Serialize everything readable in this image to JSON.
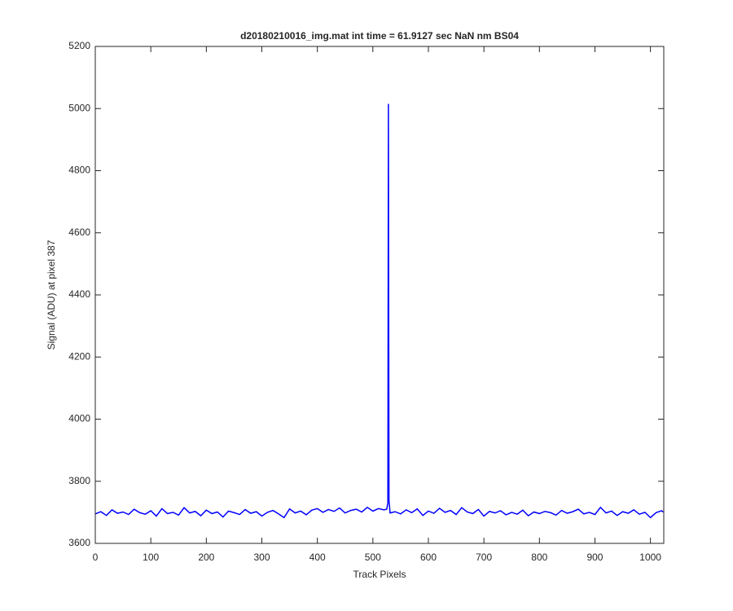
{
  "chart_data": {
    "type": "line",
    "title": "d20180210016_img.mat int time = 61.9127 sec  NaN nm BS04",
    "x_label": "Track Pixels",
    "y_label": "Signal (ADU) at pixel 387",
    "x": [
      0,
      10,
      20,
      30,
      40,
      50,
      60,
      70,
      80,
      90,
      100,
      110,
      120,
      130,
      140,
      150,
      160,
      170,
      180,
      190,
      200,
      210,
      220,
      230,
      240,
      250,
      260,
      270,
      280,
      290,
      300,
      310,
      320,
      330,
      340,
      350,
      360,
      370,
      380,
      390,
      400,
      410,
      420,
      430,
      440,
      450,
      460,
      470,
      480,
      490,
      500,
      510,
      520,
      525,
      527,
      528,
      529,
      531,
      540,
      550,
      560,
      570,
      580,
      590,
      600,
      610,
      620,
      630,
      640,
      650,
      660,
      670,
      680,
      690,
      700,
      710,
      720,
      730,
      740,
      750,
      760,
      770,
      780,
      790,
      800,
      810,
      820,
      830,
      840,
      850,
      860,
      870,
      880,
      890,
      900,
      910,
      920,
      930,
      940,
      950,
      960,
      970,
      980,
      990,
      1000,
      1010,
      1020,
      1023
    ],
    "series": [
      {
        "color": "#0000ff",
        "values": [
          3695,
          3702,
          3690,
          3708,
          3697,
          3701,
          3693,
          3710,
          3699,
          3694,
          3705,
          3688,
          3712,
          3696,
          3700,
          3691,
          3715,
          3698,
          3703,
          3689,
          3707,
          3696,
          3701,
          3685,
          3704,
          3699,
          3693,
          3709,
          3697,
          3702,
          3688,
          3700,
          3706,
          3695,
          3683,
          3711,
          3698,
          3704,
          3692,
          3707,
          3712,
          3700,
          3709,
          3703,
          3714,
          3698,
          3706,
          3710,
          3701,
          3716,
          3704,
          3712,
          3708,
          3710,
          3730,
          5015,
          3740,
          3698,
          3702,
          3695,
          3708,
          3699,
          3711,
          3690,
          3704,
          3697,
          3713,
          3700,
          3706,
          3693,
          3715,
          3701,
          3696,
          3709,
          3688,
          3703,
          3698,
          3705,
          3692,
          3700,
          3694,
          3707,
          3689,
          3701,
          3696,
          3703,
          3699,
          3691,
          3706,
          3697,
          3702,
          3710,
          3695,
          3700,
          3693,
          3716,
          3698,
          3704,
          3690,
          3702,
          3697,
          3708,
          3694,
          3700,
          3683,
          3699,
          3705,
          3701
        ]
      }
    ],
    "xlim": [
      0,
      1024
    ],
    "xticks": [
      0,
      100,
      200,
      300,
      400,
      500,
      600,
      700,
      800,
      900,
      1000
    ],
    "ylim": [
      3600,
      5200
    ],
    "yticks": [
      3600,
      3800,
      4000,
      4200,
      4400,
      4600,
      4800,
      5000,
      5200
    ]
  }
}
